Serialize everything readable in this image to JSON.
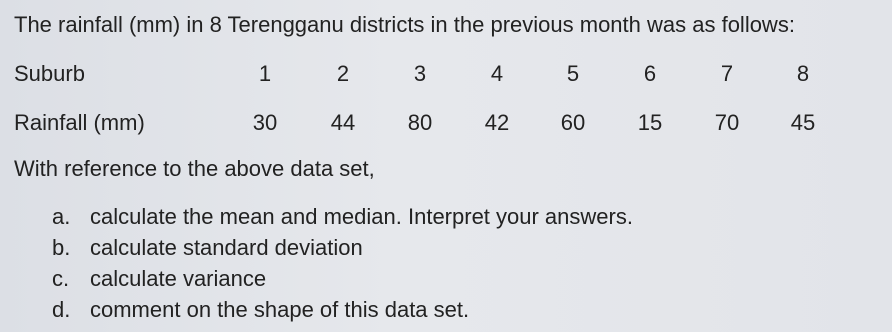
{
  "intro": "The rainfall (mm) in 8 Terengganu districts in the previous month was as follows:",
  "table": {
    "header": [
      "Suburb",
      "1",
      "2",
      "3",
      "4",
      "5",
      "6",
      "7",
      "8"
    ],
    "rows": [
      [
        "Rainfall (mm)",
        30,
        44,
        80,
        42,
        60,
        15,
        70,
        45
      ]
    ]
  },
  "reference": "With reference to the above data set,",
  "items": [
    {
      "marker": "a.",
      "text": "calculate the mean and median.  Interpret your answers."
    },
    {
      "marker": "b.",
      "text": "calculate standard deviation"
    },
    {
      "marker": "c.",
      "text": "calculate variance"
    },
    {
      "marker": "d.",
      "text": "comment on the shape of this data set."
    }
  ]
}
